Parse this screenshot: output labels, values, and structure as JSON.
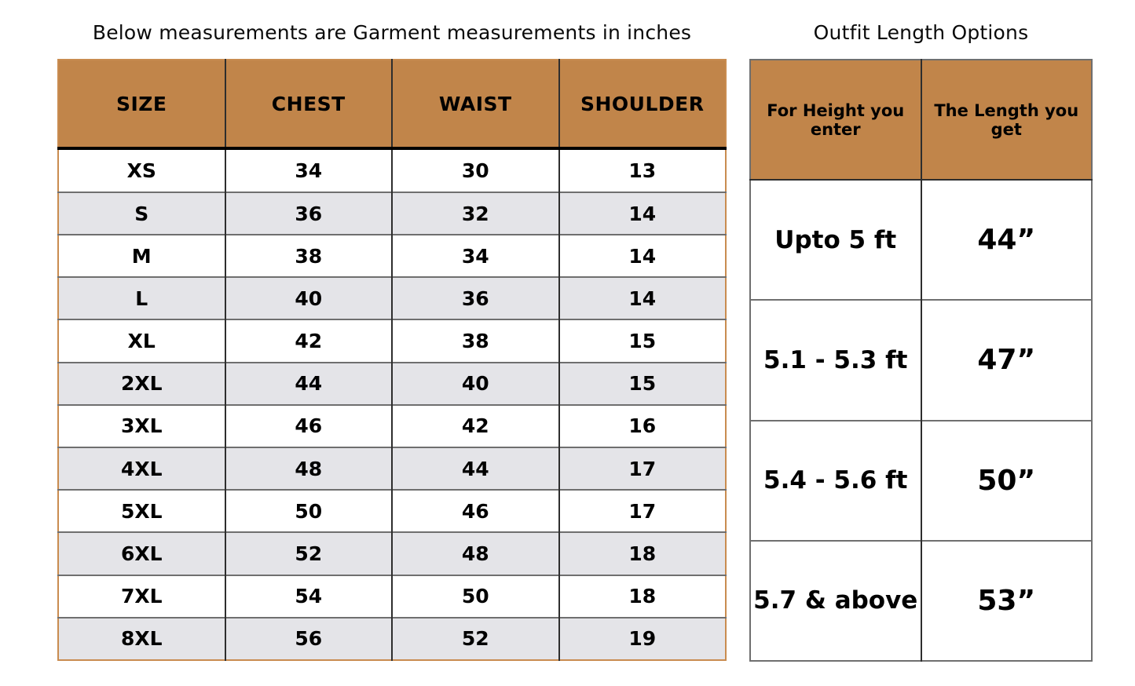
{
  "colors": {
    "header_bg": "#C1854A",
    "alt_row_bg": "#E4E4E8",
    "left_table_border": "#C98C50",
    "grid_dark": "#2E2E2E",
    "grid_gray": "#6F6F6F",
    "text": "#000000",
    "page_bg": "#FFFFFF"
  },
  "size_table": {
    "title": "Below measurements are Garment measurements in inches",
    "columns": [
      "SIZE",
      "CHEST",
      "WAIST",
      "SHOULDER"
    ],
    "rows": [
      [
        "XS",
        "34",
        "30",
        "13"
      ],
      [
        "S",
        "36",
        "32",
        "14"
      ],
      [
        "M",
        "38",
        "34",
        "14"
      ],
      [
        "L",
        "40",
        "36",
        "14"
      ],
      [
        "XL",
        "42",
        "38",
        "15"
      ],
      [
        "2XL",
        "44",
        "40",
        "15"
      ],
      [
        "3XL",
        "46",
        "42",
        "16"
      ],
      [
        "4XL",
        "48",
        "44",
        "17"
      ],
      [
        "5XL",
        "50",
        "46",
        "17"
      ],
      [
        "6XL",
        "52",
        "48",
        "18"
      ],
      [
        "7XL",
        "54",
        "50",
        "18"
      ],
      [
        "8XL",
        "56",
        "52",
        "19"
      ]
    ]
  },
  "length_table": {
    "title": "Outfit Length Options",
    "columns": [
      "For Height you enter",
      "The Length you get"
    ],
    "rows": [
      [
        "Upto 5 ft",
        "44”"
      ],
      [
        "5.1 - 5.3 ft",
        "47”"
      ],
      [
        "5.4 - 5.6 ft",
        "50”"
      ],
      [
        "5.7 & above",
        "53”"
      ]
    ]
  },
  "chart_data": [
    {
      "type": "table",
      "title": "Below measurements are Garment measurements in inches",
      "unit": "inches",
      "columns": [
        "SIZE",
        "CHEST",
        "WAIST",
        "SHOULDER"
      ],
      "rows": [
        [
          "XS",
          34,
          30,
          13
        ],
        [
          "S",
          36,
          32,
          14
        ],
        [
          "M",
          38,
          34,
          14
        ],
        [
          "L",
          40,
          36,
          14
        ],
        [
          "XL",
          42,
          38,
          15
        ],
        [
          "2XL",
          44,
          40,
          15
        ],
        [
          "3XL",
          46,
          42,
          16
        ],
        [
          "4XL",
          48,
          44,
          17
        ],
        [
          "5XL",
          50,
          46,
          17
        ],
        [
          "6XL",
          52,
          48,
          18
        ],
        [
          "7XL",
          54,
          50,
          18
        ],
        [
          "8XL",
          56,
          52,
          19
        ]
      ]
    },
    {
      "type": "table",
      "title": "Outfit Length Options",
      "columns": [
        "For Height you enter",
        "The Length you get"
      ],
      "rows": [
        [
          "Upto 5 ft",
          "44”"
        ],
        [
          "5.1 - 5.3 ft",
          "47”"
        ],
        [
          "5.4 - 5.6 ft",
          "50”"
        ],
        [
          "5.7 & above",
          "53”"
        ]
      ]
    }
  ]
}
